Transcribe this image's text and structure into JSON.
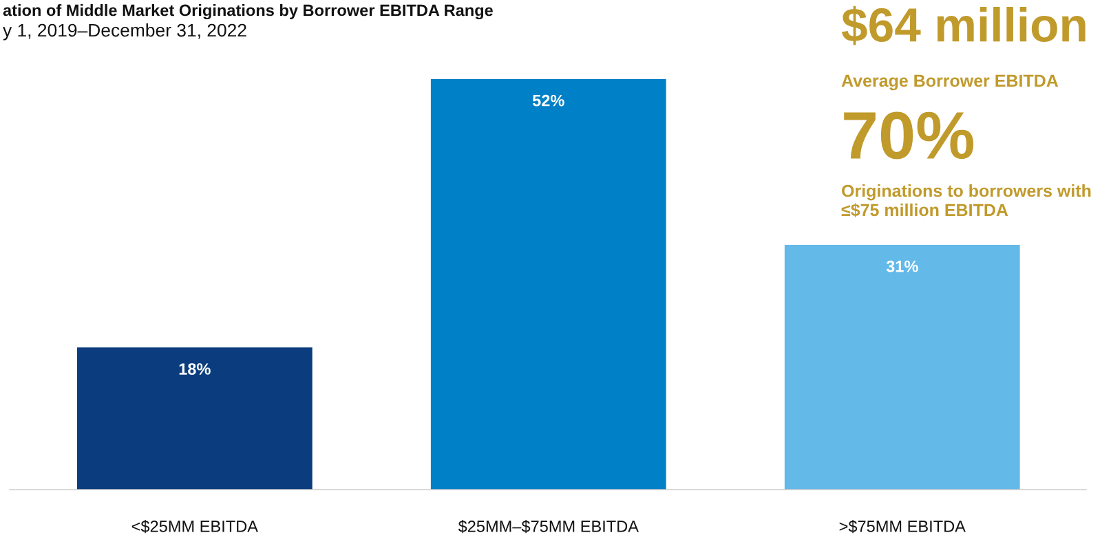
{
  "chart_data": {
    "type": "bar",
    "title": "ation of Middle Market Originations by Borrower EBITDA Range",
    "subtitle": "y 1, 2019–December 31, 2022",
    "categories": [
      "<$25MM EBITDA",
      "$25MM–$75MM EBITDA",
      ">$75MM EBITDA"
    ],
    "values": [
      18,
      52,
      31
    ],
    "colors": [
      "#0b3d7e",
      "#0080c6",
      "#63b9e8"
    ],
    "data_labels": true,
    "value_labels": [
      "18%",
      "52%",
      "31%"
    ],
    "annotations": [
      "$64 million",
      "Average Borrower EBITDA",
      "70%",
      "Originations to borrowers with\n≤$75 million EBITDA"
    ],
    "grid": false,
    "legend": false
  }
}
